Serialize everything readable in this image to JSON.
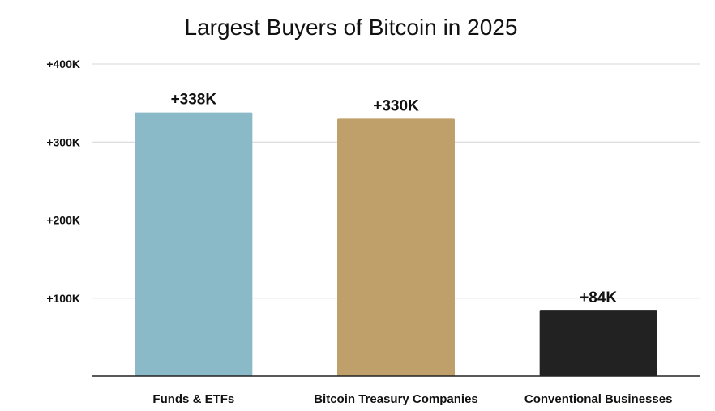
{
  "chart_data": {
    "type": "bar",
    "title": "Largest Buyers of Bitcoin in 2025",
    "xlabel": "",
    "ylabel": "",
    "categories": [
      "Funds & ETFs",
      "Bitcoin Treasury Companies",
      "Conventional Businesses"
    ],
    "values": [
      338000,
      330000,
      84000
    ],
    "data_labels": [
      "+338K",
      "+330K",
      "+84K"
    ],
    "colors": [
      "#8AB9C8",
      "#C0A06A",
      "#222222"
    ],
    "ylim": [
      0,
      400000
    ],
    "yticks": [
      100000,
      200000,
      300000,
      400000
    ],
    "ytick_labels": [
      "+100K",
      "+200K",
      "+300K",
      "+400K"
    ],
    "grid": true,
    "legend": "none"
  }
}
